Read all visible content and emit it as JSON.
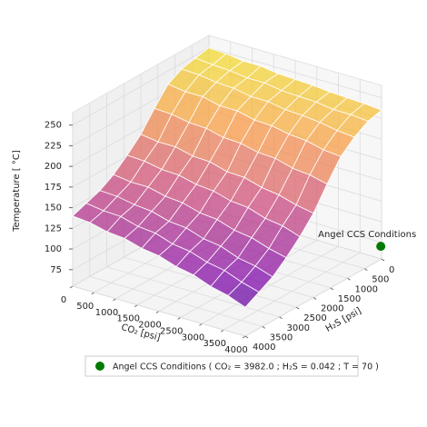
{
  "chart_data": {
    "type": "surface3d",
    "x_label": "CO₂ [psi]",
    "y_label": "H₂S [psi]",
    "z_label": "Temperature [ °C]",
    "x": [
      0,
      400,
      800,
      1200,
      1600,
      2000,
      2400,
      2800,
      3200,
      3600,
      4000
    ],
    "y": [
      0,
      400,
      800,
      1200,
      1600,
      2000,
      2400,
      2800,
      3200,
      3600,
      4000
    ],
    "z": [
      [
        250,
        249,
        246,
        246,
        243,
        242,
        241,
        239,
        238,
        237,
        235
      ],
      [
        247,
        245,
        244,
        241,
        241,
        238,
        237,
        236,
        233,
        233,
        231
      ],
      [
        243,
        242,
        239,
        238,
        234,
        234,
        230,
        229,
        227,
        223,
        221
      ],
      [
        234,
        231,
        231,
        226,
        226,
        221,
        220,
        216,
        214,
        209,
        207
      ],
      [
        214,
        213,
        209,
        208,
        203,
        202,
        197,
        196,
        190,
        188,
        183
      ],
      [
        192,
        189,
        189,
        184,
        183,
        177,
        176,
        170,
        167,
        161,
        157
      ],
      [
        176,
        175,
        171,
        170,
        165,
        163,
        157,
        155,
        148,
        145,
        138
      ],
      [
        162,
        159,
        159,
        154,
        152,
        146,
        144,
        137,
        134,
        127,
        122
      ],
      [
        152,
        151,
        147,
        145,
        139,
        137,
        130,
        127,
        119,
        115,
        108
      ],
      [
        146,
        143,
        142,
        136,
        134,
        127,
        124,
        117,
        113,
        105,
        99
      ],
      [
        140,
        138,
        133,
        131,
        125,
        122,
        115,
        111,
        103,
        98,
        90
      ]
    ],
    "xlim": [
      0,
      4000
    ],
    "ylim": [
      0,
      4000
    ],
    "zlim": [
      55,
      265
    ],
    "xticks": [
      0,
      500,
      1000,
      1500,
      2000,
      2500,
      3000,
      3500,
      4000
    ],
    "yticks": [
      0,
      500,
      1000,
      1500,
      2000,
      2500,
      3000,
      3500,
      4000
    ],
    "zticks": [
      75,
      100,
      125,
      150,
      175,
      200,
      225,
      250
    ],
    "colormap": "plasma",
    "grid": true,
    "point": {
      "x": 3982.0,
      "y": 0.042,
      "z": 70,
      "color": "#007a00",
      "annotation": "Angel CCS Conditions",
      "legend_label": "Angel CCS Conditions ( CO₂ = 3982.0 ; H₂S = 0.042 ; T = 70 )"
    }
  }
}
